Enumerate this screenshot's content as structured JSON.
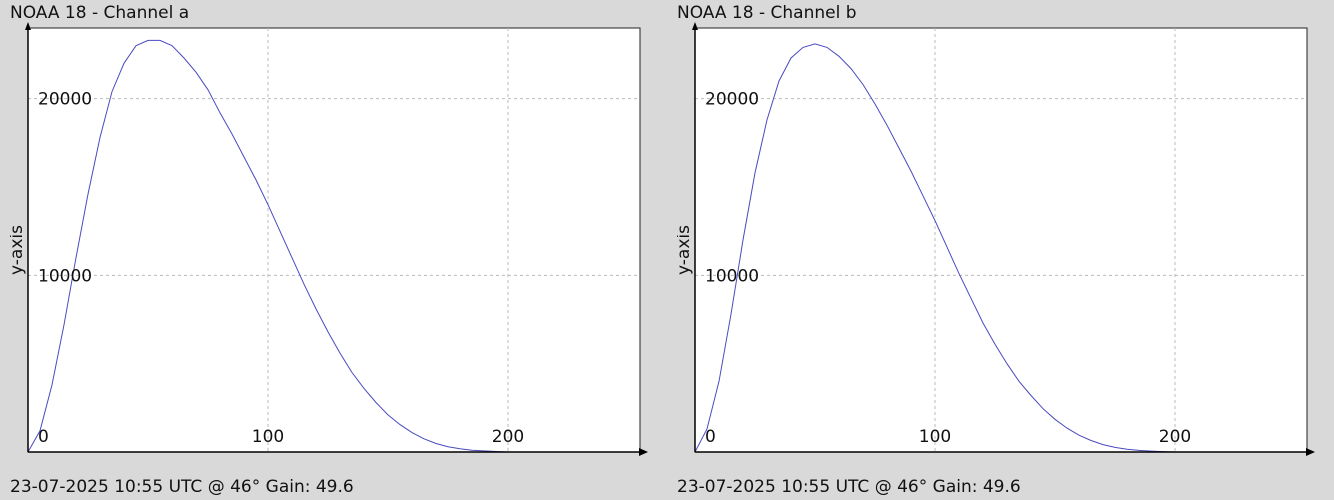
{
  "chart_data": [
    {
      "type": "line",
      "title": "NOAA 18 - Channel a",
      "footer": "23-07-2025 10:55 UTC @ 46° Gain: 49.6",
      "ylabel": "y-axis",
      "xlim": [
        0,
        255
      ],
      "ylim": [
        0,
        24000
      ],
      "xticks": [
        0,
        100,
        200
      ],
      "yticks": [
        10000,
        20000
      ],
      "grid": true,
      "line_color": "#4a4ac0",
      "series": [
        {
          "x": [
            0,
            5,
            10,
            15,
            20,
            25,
            30,
            35,
            40,
            45,
            50,
            55,
            60,
            65,
            70,
            75,
            80,
            85,
            90,
            95,
            100,
            105,
            110,
            115,
            120,
            125,
            130,
            135,
            140,
            145,
            150,
            155,
            160,
            165,
            170,
            175,
            180,
            185,
            190,
            195,
            200
          ],
          "values": [
            0,
            1200,
            3800,
            7200,
            11000,
            14600,
            17800,
            20400,
            22000,
            23000,
            23300,
            23300,
            23000,
            22300,
            21500,
            20500,
            19200,
            18000,
            16700,
            15400,
            14000,
            12500,
            11000,
            9500,
            8100,
            6800,
            5600,
            4500,
            3600,
            2800,
            2100,
            1550,
            1100,
            750,
            480,
            300,
            180,
            100,
            60,
            30,
            0
          ]
        }
      ]
    },
    {
      "type": "line",
      "title": "NOAA 18 - Channel b",
      "footer": "23-07-2025 10:55 UTC @ 46° Gain: 49.6",
      "ylabel": "y-axis",
      "xlim": [
        0,
        255
      ],
      "ylim": [
        0,
        24000
      ],
      "xticks": [
        0,
        100,
        200
      ],
      "yticks": [
        10000,
        20000
      ],
      "grid": true,
      "line_color": "#4a4ac0",
      "series": [
        {
          "x": [
            0,
            5,
            10,
            15,
            20,
            25,
            30,
            35,
            40,
            45,
            50,
            55,
            60,
            65,
            70,
            75,
            80,
            85,
            90,
            95,
            100,
            105,
            110,
            115,
            120,
            125,
            130,
            135,
            140,
            145,
            150,
            155,
            160,
            165,
            170,
            175,
            180,
            185,
            190,
            195,
            200
          ],
          "values": [
            0,
            1300,
            4000,
            7800,
            12000,
            15800,
            18800,
            21000,
            22300,
            22900,
            23100,
            22900,
            22400,
            21700,
            20800,
            19700,
            18500,
            17200,
            15900,
            14500,
            13100,
            11600,
            10100,
            8700,
            7300,
            6100,
            5000,
            4000,
            3200,
            2450,
            1850,
            1350,
            950,
            650,
            420,
            260,
            160,
            90,
            50,
            20,
            0
          ]
        }
      ]
    }
  ]
}
